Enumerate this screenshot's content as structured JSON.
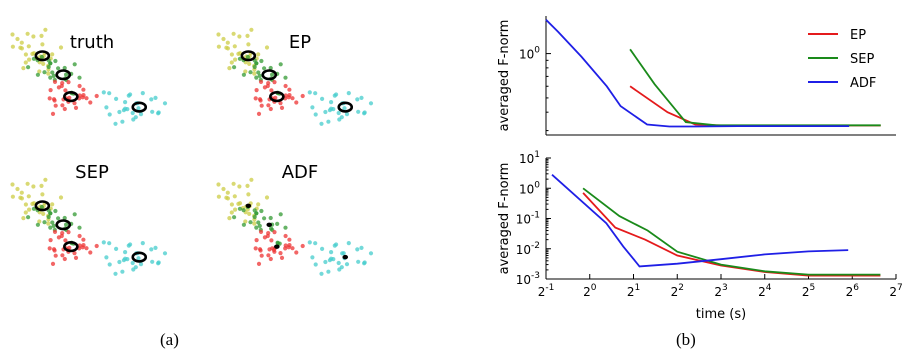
{
  "captions": {
    "a": "(a)",
    "b": "(b)"
  },
  "colors": {
    "yellow": "#cccc44",
    "green": "#339933",
    "red": "#ee3333",
    "cyan": "#44cccc",
    "EP": "#e41a1c",
    "SEP": "#1a8a1a",
    "ADF": "#1f1fe6"
  },
  "panel_a": {
    "titles": [
      "truth",
      "EP",
      "SEP",
      "ADF"
    ]
  },
  "chart_data": [
    {
      "type": "line",
      "title": "",
      "ylabel": "averaged F-norm",
      "xlabel": "",
      "xscale": "log2",
      "yscale": "log10",
      "xlim": [
        0.45,
        128
      ],
      "ylim": [
        0.28,
        1.8
      ],
      "y_ticks": [
        {
          "value": 1,
          "base": "10",
          "exp": "0"
        }
      ],
      "legend": {
        "placement": "top-right",
        "entries": [
          "EP",
          "SEP",
          "ADF"
        ]
      },
      "series": [
        {
          "name": "EP",
          "x": [
            1.75,
            3.2,
            5.0,
            8,
            20,
            60,
            100
          ],
          "y": [
            0.6,
            0.4,
            0.33,
            0.325,
            0.325,
            0.325,
            0.325
          ]
        },
        {
          "name": "SEP",
          "x": [
            1.75,
            2.6,
            4.3,
            7,
            20,
            60,
            100
          ],
          "y": [
            1.07,
            0.62,
            0.342,
            0.326,
            0.326,
            0.326,
            0.326
          ]
        },
        {
          "name": "ADF",
          "x": [
            0.45,
            0.55,
            0.8,
            1.2,
            1.5,
            2.3,
            3.3,
            5,
            10,
            20,
            45,
            60
          ],
          "y": [
            1.7,
            1.4,
            0.95,
            0.6,
            0.44,
            0.33,
            0.32,
            0.32,
            0.322,
            0.322,
            0.322,
            0.322
          ]
        }
      ]
    },
    {
      "type": "line",
      "title": "",
      "ylabel": "averaged F-norm",
      "xlabel": "time (s)",
      "xscale": "log2",
      "yscale": "log10",
      "xlim": [
        0.5,
        128
      ],
      "ylim": [
        0.001,
        10
      ],
      "x_ticks": [
        {
          "value": 0.5,
          "base": "2",
          "exp": "-1"
        },
        {
          "value": 1,
          "base": "2",
          "exp": "0"
        },
        {
          "value": 2,
          "base": "2",
          "exp": "1"
        },
        {
          "value": 4,
          "base": "2",
          "exp": "2"
        },
        {
          "value": 8,
          "base": "2",
          "exp": "3"
        },
        {
          "value": 16,
          "base": "2",
          "exp": "4"
        },
        {
          "value": 32,
          "base": "2",
          "exp": "5"
        },
        {
          "value": 64,
          "base": "2",
          "exp": "6"
        },
        {
          "value": 128,
          "base": "2",
          "exp": "7"
        }
      ],
      "y_ticks": [
        {
          "value": 0.001,
          "base": "10",
          "exp": "-3"
        },
        {
          "value": 0.01,
          "base": "10",
          "exp": "-2"
        },
        {
          "value": 0.1,
          "base": "10",
          "exp": "-1"
        },
        {
          "value": 1,
          "base": "10",
          "exp": "0"
        },
        {
          "value": 10,
          "base": "10",
          "exp": "1"
        }
      ],
      "series": [
        {
          "name": "EP",
          "x": [
            0.9,
            1.5,
            2.4,
            4,
            8,
            16,
            32,
            64,
            100
          ],
          "y": [
            0.7,
            0.05,
            0.02,
            0.006,
            0.0028,
            0.0017,
            0.0013,
            0.0013,
            0.0013
          ]
        },
        {
          "name": "SEP",
          "x": [
            0.9,
            1.6,
            2.5,
            4,
            8,
            16,
            32,
            64,
            100
          ],
          "y": [
            1.0,
            0.12,
            0.04,
            0.008,
            0.003,
            0.0018,
            0.0014,
            0.0014,
            0.0014
          ]
        },
        {
          "name": "ADF",
          "x": [
            0.55,
            1.3,
            1.7,
            2.2,
            4,
            8,
            16,
            32,
            60
          ],
          "y": [
            2.8,
            0.07,
            0.012,
            0.0026,
            0.0032,
            0.0045,
            0.0065,
            0.0082,
            0.009
          ]
        }
      ]
    }
  ]
}
